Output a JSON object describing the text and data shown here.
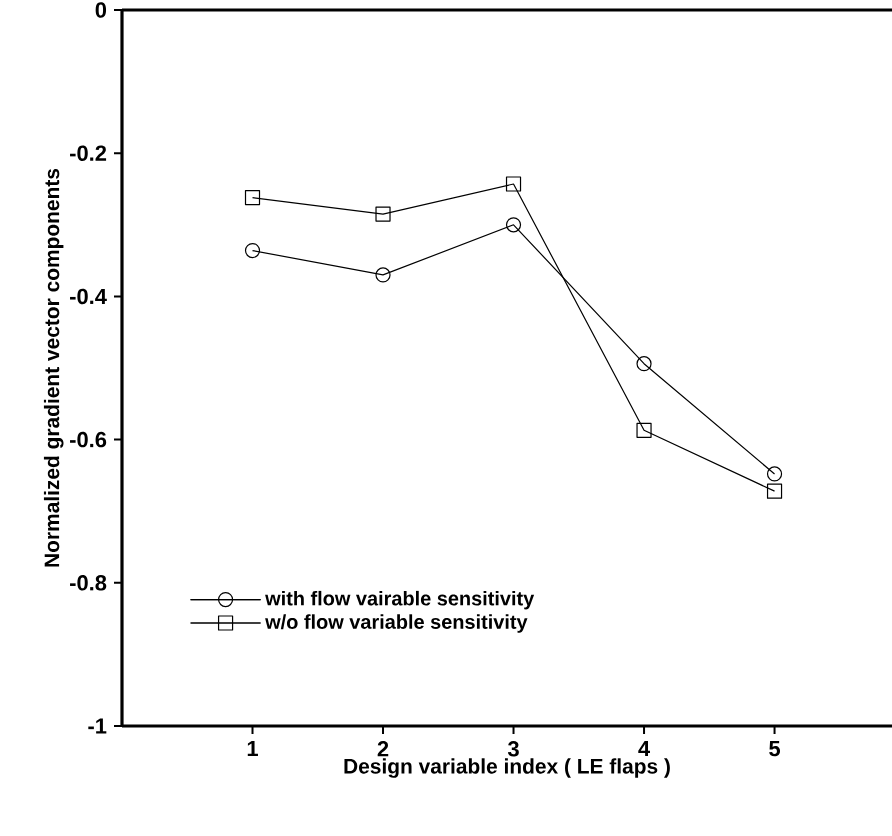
{
  "chart_data": {
    "type": "line",
    "xlabel": "Design variable index ( LE flaps )",
    "ylabel": "Normalized gradient vector components",
    "x": [
      1,
      2,
      3,
      4,
      5
    ],
    "series": [
      {
        "name": "with flow vairable sensitivity",
        "color": "#000000",
        "marker": "circle",
        "values": [
          -0.336,
          -0.37,
          -0.3,
          -0.494,
          -0.648
        ]
      },
      {
        "name": "w/o flow variable sensitivity",
        "color": "#000000",
        "marker": "square",
        "values": [
          -0.262,
          -0.285,
          -0.243,
          -0.587,
          -0.672
        ]
      }
    ],
    "xlim": [
      0,
      5.9
    ],
    "ylim": [
      -1,
      0
    ],
    "xticks": [
      1,
      2,
      3,
      4,
      5
    ],
    "yticks": [
      -1,
      -0.8,
      -0.6,
      -0.4,
      -0.2,
      0
    ],
    "grid": false,
    "legend": "bottom left",
    "line_style": "solid"
  }
}
